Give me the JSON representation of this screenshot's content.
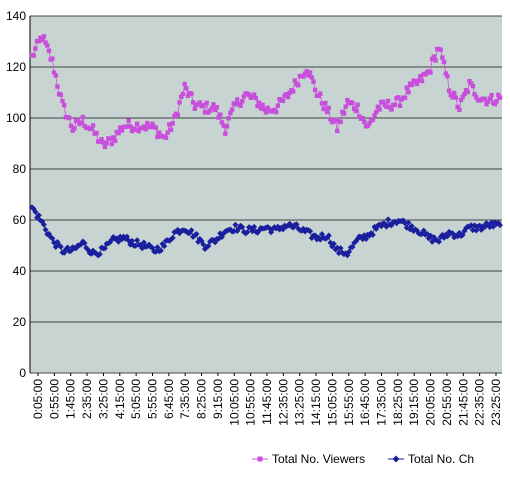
{
  "chart_data": {
    "type": "line",
    "title": "",
    "xlabel": "",
    "ylabel": "",
    "ylim": [
      0,
      140
    ],
    "yticks": [
      0,
      20,
      40,
      60,
      80,
      100,
      120,
      140
    ],
    "x_tick_labels": [
      "0:05:00",
      "0:55:00",
      "1:45:00",
      "2:35:00",
      "3:25:00",
      "4:15:00",
      "5:05:00",
      "5:55:00",
      "6:45:00",
      "7:35:00",
      "8:25:00",
      "9:15:00",
      "10:05:00",
      "10:55:00",
      "11:45:00",
      "12:35:00",
      "13:25:00",
      "14:15:00",
      "15:05:00",
      "15:55:00",
      "16:45:00",
      "17:35:00",
      "18:25:00",
      "19:15:00",
      "20:05:00",
      "20:55:00",
      "21:45:00",
      "22:35:00",
      "23:25:00"
    ],
    "x_interval_minutes": 5,
    "grid": "horizontal",
    "legend_position": "bottom-right",
    "colors": {
      "plot_background": "#c8d4d2",
      "grid": "#444444"
    },
    "series": [
      {
        "name": "Total No. Viewers",
        "color": "#c84fdc",
        "marker": "square",
        "anchor_values": [
          124,
          132,
          122,
          105,
          96,
          99,
          95,
          89,
          92,
          97,
          97,
          97,
          96,
          92,
          99,
          112,
          105,
          104,
          104,
          96,
          105,
          109,
          107,
          103,
          104,
          108,
          114,
          120,
          110,
          103,
          96,
          106,
          104,
          96,
          104,
          105,
          106,
          111,
          114,
          118,
          128,
          112,
          104,
          113,
          108,
          107,
          108
        ]
      },
      {
        "name": "Total No. Ch",
        "color": "#1a1f9e",
        "marker": "diamond",
        "anchor_values": [
          65,
          59,
          52,
          48,
          48,
          51,
          47,
          48,
          52,
          53,
          51,
          50,
          48,
          50,
          55,
          57,
          54,
          50,
          52,
          56,
          57,
          56,
          56,
          57,
          56,
          58,
          57,
          55,
          53,
          54,
          48,
          47,
          52,
          54,
          57,
          59,
          60,
          58,
          56,
          53,
          52,
          55,
          54,
          57,
          57,
          58,
          58
        ]
      }
    ]
  }
}
